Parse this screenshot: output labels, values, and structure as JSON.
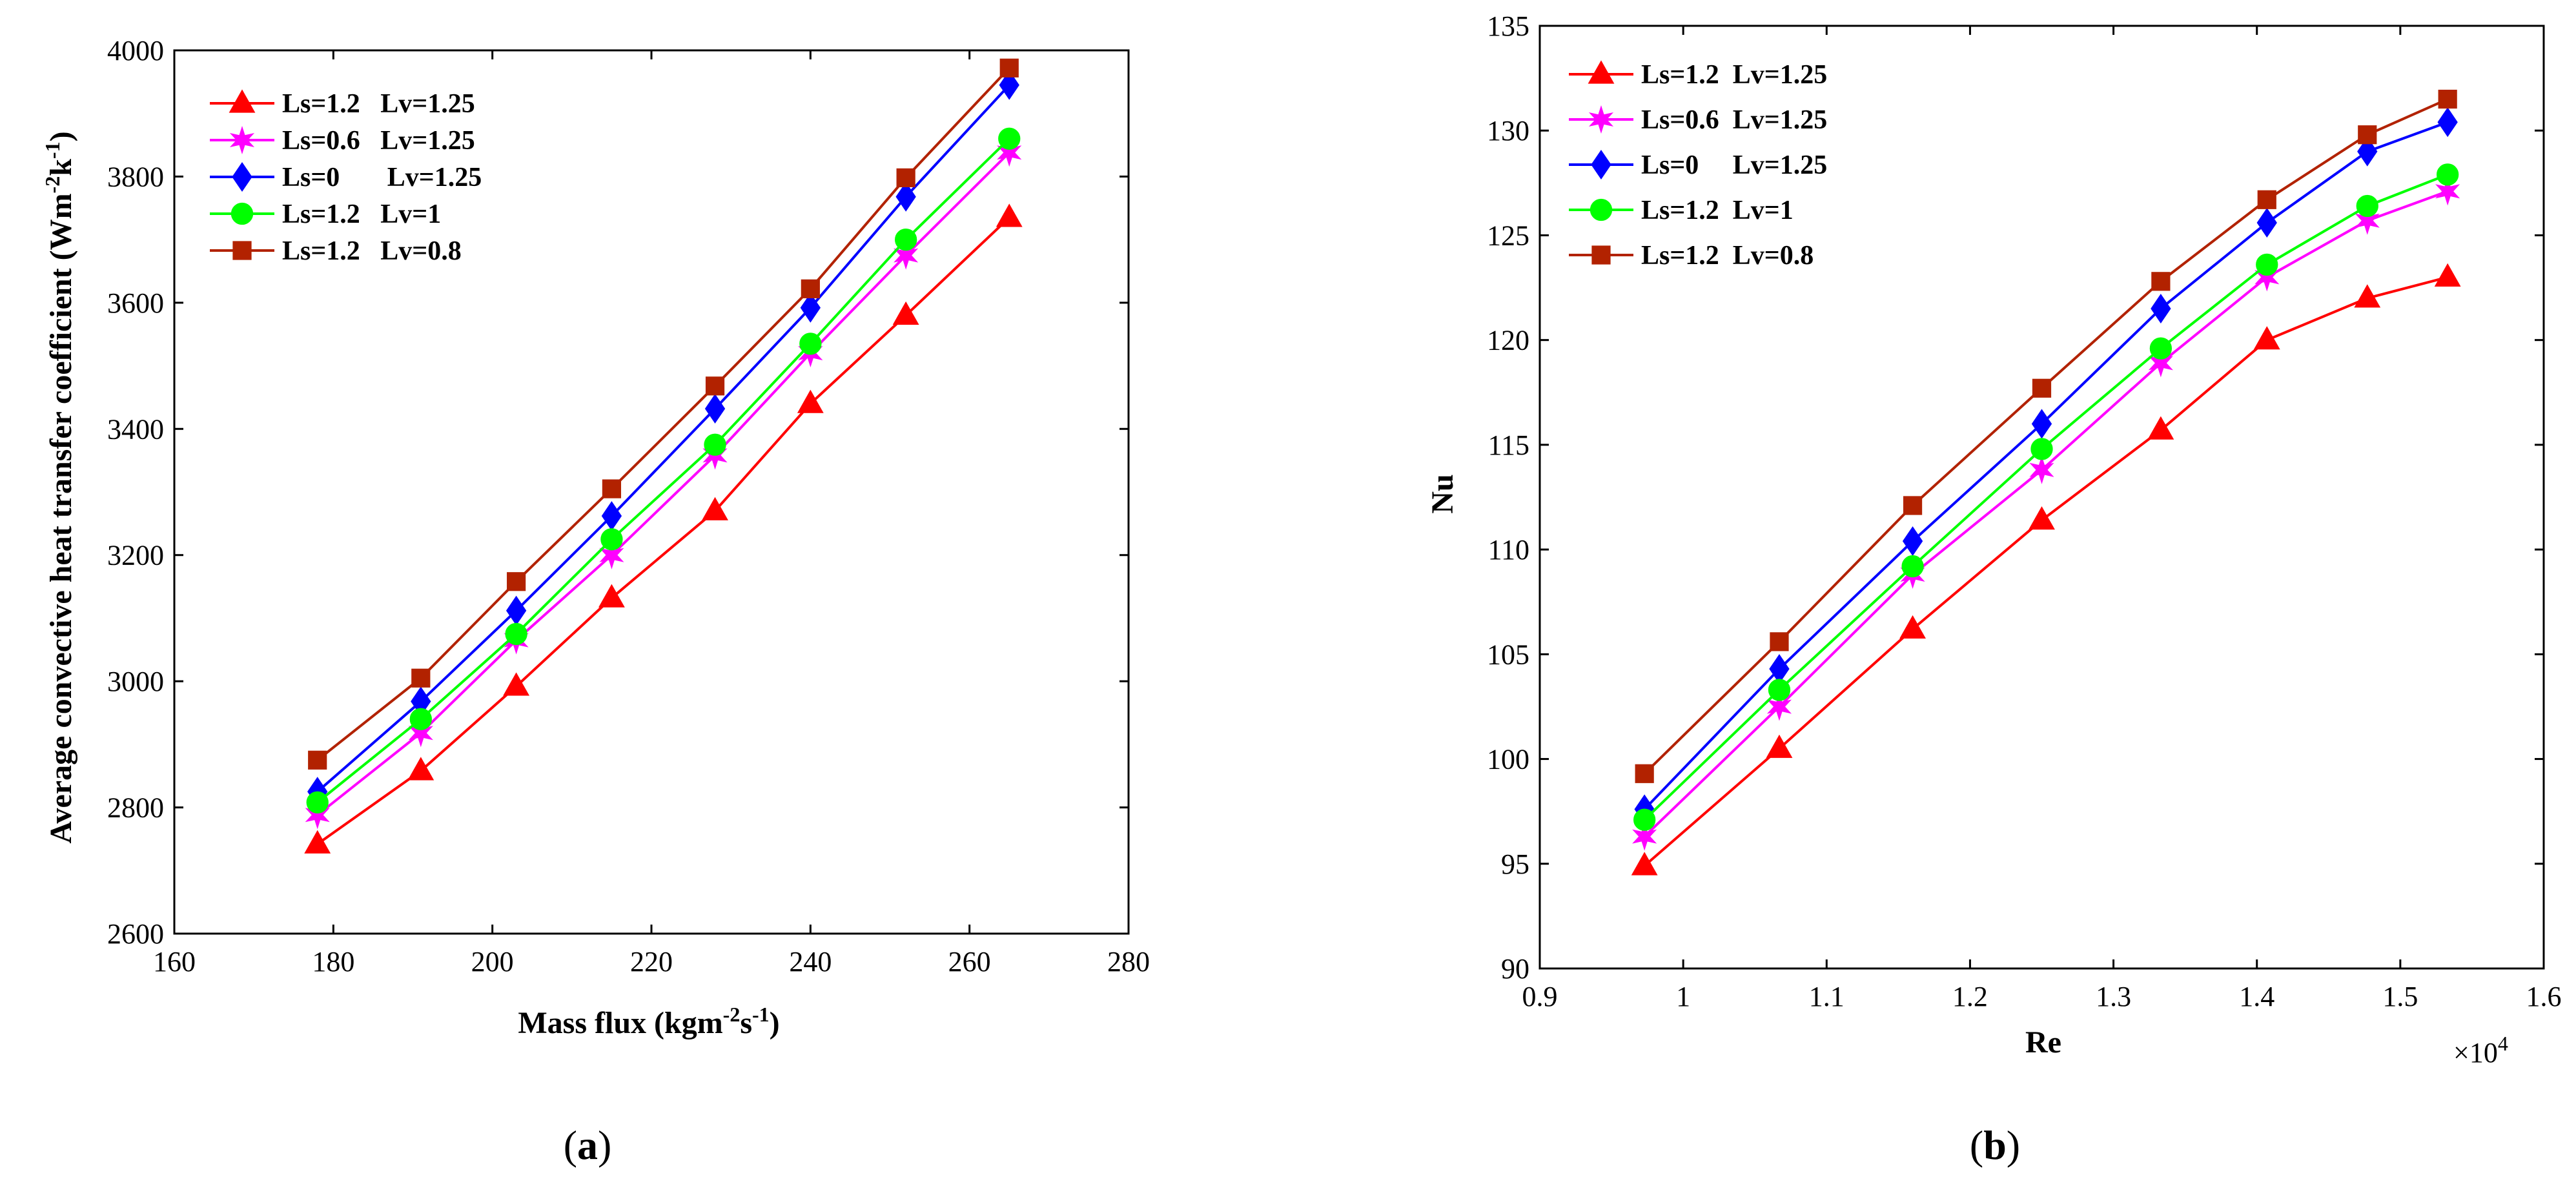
{
  "panels": [
    {
      "id": "a",
      "caption_letter": "a",
      "chart_data": {
        "type": "line",
        "title": "",
        "xlabel_main": "Mass flux (kgm",
        "xlabel_sup1": "-2",
        "xlabel_mid": "s",
        "xlabel_sup2": "-1",
        "xlabel_end": ")",
        "ylabel_main": "Average convective heat transfer coefficient (Wm",
        "ylabel_sup1": "-2",
        "ylabel_mid": "k",
        "ylabel_sup2": "-1",
        "ylabel_end": ")",
        "xlim": [
          160,
          280
        ],
        "ylim": [
          2600,
          4000
        ],
        "xticks": [
          160,
          180,
          200,
          220,
          240,
          260,
          280
        ],
        "yticks": [
          2600,
          2800,
          3000,
          3200,
          3400,
          3600,
          3800,
          4000
        ],
        "x": [
          178,
          191,
          203,
          215,
          228,
          240,
          252,
          265
        ],
        "series": [
          {
            "name": "Ls=1.2   Lv=1.25",
            "color": "#ff0000",
            "marker": "triangle",
            "values": [
              2742,
              2858,
              2992,
              3132,
              3270,
              3440,
              3580,
              3735
            ]
          },
          {
            "name": "Ls=0.6   Lv=1.25",
            "color": "#ff00ff",
            "marker": "star",
            "values": [
              2788,
              2918,
              3065,
              3200,
              3358,
              3520,
              3675,
              3838
            ]
          },
          {
            "name": "Ls=0       Lv=1.25",
            "color": "#0000ff",
            "marker": "diamond",
            "values": [
              2825,
              2968,
              3112,
              3262,
              3432,
              3592,
              3768,
              3945
            ]
          },
          {
            "name": "Ls=1.2   Lv=1",
            "color": "#00ff00",
            "marker": "circle",
            "values": [
              2808,
              2940,
              3075,
              3225,
              3375,
              3535,
              3700,
              3860
            ]
          },
          {
            "name": "Ls=1.2   Lv=0.8",
            "color": "#b22200",
            "marker": "square",
            "values": [
              2875,
              3005,
              3158,
              3305,
              3468,
              3622,
              3798,
              3972
            ]
          }
        ]
      }
    },
    {
      "id": "b",
      "caption_letter": "b",
      "chart_data": {
        "type": "line",
        "title": "",
        "xlabel": "Re",
        "ylabel": "Nu",
        "xlim": [
          0.9,
          1.6
        ],
        "ylim": [
          90,
          135
        ],
        "xticks": [
          0.9,
          1,
          1.1,
          1.2,
          1.3,
          1.4,
          1.5,
          1.6
        ],
        "yticks": [
          90,
          95,
          100,
          105,
          110,
          115,
          120,
          125,
          130,
          135
        ],
        "x_multiplier_base": "×10",
        "x_multiplier_exp": "4",
        "x": [
          0.973,
          1.067,
          1.16,
          1.25,
          1.333,
          1.407,
          1.477,
          1.533
        ],
        "series": [
          {
            "name": "Ls=1.2  Lv=1.25",
            "color": "#ff0000",
            "marker": "triangle",
            "values": [
              94.9,
              100.5,
              106.2,
              111.4,
              115.7,
              120.0,
              122.0,
              123.0
            ]
          },
          {
            "name": "Ls=0.6  Lv=1.25",
            "color": "#ff00ff",
            "marker": "star",
            "values": [
              96.3,
              102.5,
              108.8,
              113.8,
              118.9,
              123.0,
              125.7,
              127.1
            ]
          },
          {
            "name": "Ls=0     Lv=1.25",
            "color": "#0000ff",
            "marker": "diamond",
            "values": [
              97.6,
              104.3,
              110.4,
              116.0,
              121.5,
              125.6,
              129.0,
              130.4
            ]
          },
          {
            "name": "Ls=1.2  Lv=1",
            "color": "#00ff00",
            "marker": "circle",
            "values": [
              97.1,
              103.3,
              109.2,
              114.8,
              119.6,
              123.6,
              126.4,
              127.9
            ]
          },
          {
            "name": "Ls=1.2  Lv=0.8",
            "color": "#b22200",
            "marker": "square",
            "values": [
              99.3,
              105.6,
              112.1,
              117.7,
              122.8,
              126.7,
              129.8,
              131.5
            ]
          }
        ]
      }
    }
  ]
}
